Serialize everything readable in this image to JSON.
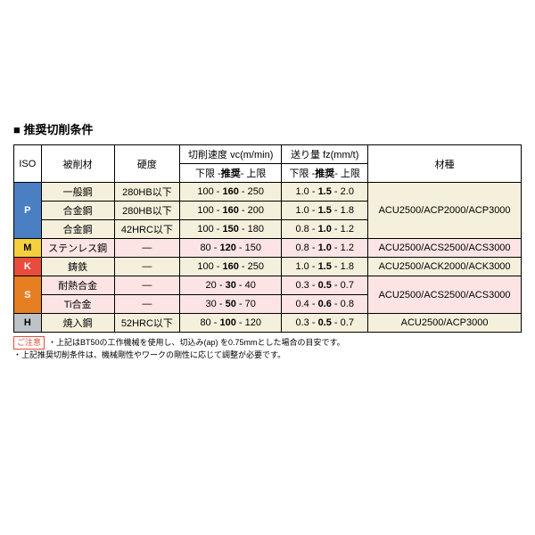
{
  "title": "■ 推奨切削条件",
  "headers": {
    "iso": "ISO",
    "material": "被削材",
    "hardness": "硬度",
    "vc": "切削速度 vc(m/min)",
    "vc_sub": "下限 -推奨- 上限",
    "fz": "送り量 fz(mm/t)",
    "fz_sub": "下限 -推奨- 上限",
    "grade": "材種"
  },
  "rows": [
    {
      "iso": "P",
      "material": "一般鋼",
      "hardness": "280HB以下",
      "vc_lo": "100",
      "vc_rec": "160",
      "vc_hi": "250",
      "fz_lo": "1.0",
      "fz_rec": "1.5",
      "fz_hi": "2.0"
    },
    {
      "material": "合金鋼",
      "hardness": "280HB以下",
      "vc_lo": "100",
      "vc_rec": "160",
      "vc_hi": "200",
      "fz_lo": "1.0",
      "fz_rec": "1.5",
      "fz_hi": "1.8"
    },
    {
      "material": "合金鋼",
      "hardness": "42HRC以下",
      "vc_lo": "100",
      "vc_rec": "150",
      "vc_hi": "180",
      "fz_lo": "0.8",
      "fz_rec": "1.0",
      "fz_hi": "1.2"
    },
    {
      "iso": "M",
      "material": "ステンレス鋼",
      "hardness": "—",
      "vc_lo": "80",
      "vc_rec": "120",
      "vc_hi": "150",
      "fz_lo": "0.8",
      "fz_rec": "1.0",
      "fz_hi": "1.2",
      "grade": "ACU2500/ACS2500/ACS3000"
    },
    {
      "iso": "K",
      "material": "鋳鉄",
      "hardness": "—",
      "vc_lo": "100",
      "vc_rec": "160",
      "vc_hi": "250",
      "fz_lo": "1.0",
      "fz_rec": "1.5",
      "fz_hi": "1.8",
      "grade": "ACU2500/ACK2000/ACK3000"
    },
    {
      "iso": "S",
      "material": "耐熱合金",
      "hardness": "—",
      "vc_lo": "20",
      "vc_rec": "30",
      "vc_hi": "40",
      "fz_lo": "0.3",
      "fz_rec": "0.5",
      "fz_hi": "0.7"
    },
    {
      "material": "Ti合金",
      "hardness": "—",
      "vc_lo": "30",
      "vc_rec": "50",
      "vc_hi": "70",
      "fz_lo": "0.4",
      "fz_rec": "0.6",
      "fz_hi": "0.8"
    },
    {
      "iso": "H",
      "material": "焼入鋼",
      "hardness": "52HRC以下",
      "vc_lo": "80",
      "vc_rec": "100",
      "vc_hi": "120",
      "fz_lo": "0.3",
      "fz_rec": "0.5",
      "fz_hi": "0.7",
      "grade": "ACU2500/ACP3000"
    }
  ],
  "gradeP": "ACU2500/ACP2000/ACP3000",
  "gradeS": "ACU2500/ACS2500/ACS3000",
  "caution": "ご注意",
  "note1": "・上記はBT50の工作機械を使用し、切込み(ap) を0.75mmとした場合の目安です。",
  "note2": "・上記推奨切削条件は、機械剛性やワークの剛性に応じて調整が必要です。"
}
